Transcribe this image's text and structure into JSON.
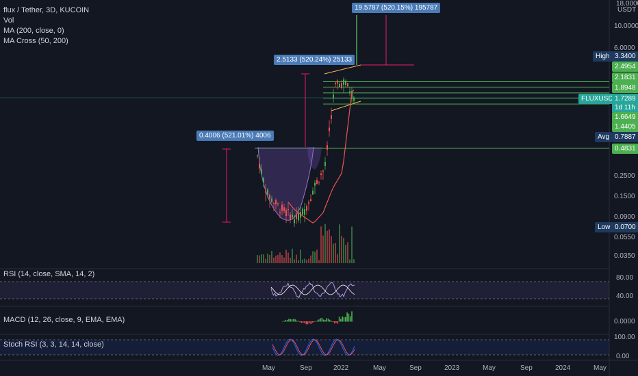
{
  "legend": {
    "title": "flux / Tether, 3D, KUCOIN",
    "vol": "Vol",
    "ma200": "MA (200, close, 0)",
    "ma_cross": "MA Cross (50, 200)"
  },
  "indicators": {
    "rsi": "RSI (14, close, SMA, 14, 2)",
    "macd": "MACD (12, 26, close, 9, EMA, EMA)",
    "stoch": "Stoch RSI (3, 3, 14, 14, close)"
  },
  "price_axis": {
    "top_label": "18.0000",
    "unit": "USDT",
    "ticks": [
      "10.0000",
      "6.0000",
      "0.2500",
      "0.1500",
      "0.0900",
      "0.0550",
      "0.0350"
    ]
  },
  "price_badges": {
    "high_label": "High",
    "high_value": "3.3400",
    "levels": [
      "2.4954",
      "2.1831",
      "1.8948",
      "1.6649",
      "1.4405",
      "0.4831"
    ],
    "symbol": "FLUXUSDT",
    "current": "1.7289",
    "timer": "1d 11h",
    "avg_label": "Avg",
    "avg_value": "0.7887",
    "low_label": "Low",
    "low_value": "0.0700"
  },
  "callouts": {
    "c1": "0.4006 (521.01%) 4006",
    "c2": "2.5133 (520.24%) 25133",
    "c3": "19.5787 (520.15%) 195787"
  },
  "rsi_axis": [
    "80.00",
    "40.00"
  ],
  "macd_axis": [
    "0.0000"
  ],
  "stoch_axis": [
    "100.00",
    "0.00"
  ],
  "time_axis": [
    "May",
    "Sep",
    "2022",
    "May",
    "Sep",
    "2023",
    "May",
    "Sep",
    "2024",
    "May"
  ],
  "colors": {
    "bg": "#131722",
    "green": "#4caf50",
    "red": "#ef5350",
    "blue": "#2962ff",
    "purple": "#9575cd",
    "badge_green": "#26a69a",
    "badge_navy": "#1e3a5f"
  },
  "chart_data": {
    "type": "line",
    "title": "flux / Tether, 3D, KUCOIN",
    "yscale": "log",
    "price_path": [
      {
        "t": "2021-04",
        "price": 0.4
      },
      {
        "t": "2021-05",
        "price": 0.16
      },
      {
        "t": "2021-06",
        "price": 0.12
      },
      {
        "t": "2021-07",
        "price": 0.1
      },
      {
        "t": "2021-08",
        "price": 0.085
      },
      {
        "t": "2021-09",
        "price": 0.11
      },
      {
        "t": "2021-10",
        "price": 0.2
      },
      {
        "t": "2021-11",
        "price": 0.3
      },
      {
        "t": "2021-12",
        "price": 2.2
      },
      {
        "t": "2022-01",
        "price": 2.5
      },
      {
        "t": "2022-02",
        "price": 1.73
      }
    ],
    "horizontal_levels": [
      2.4954,
      2.1831,
      1.8948,
      1.6649,
      1.4405,
      0.4831
    ]
  }
}
